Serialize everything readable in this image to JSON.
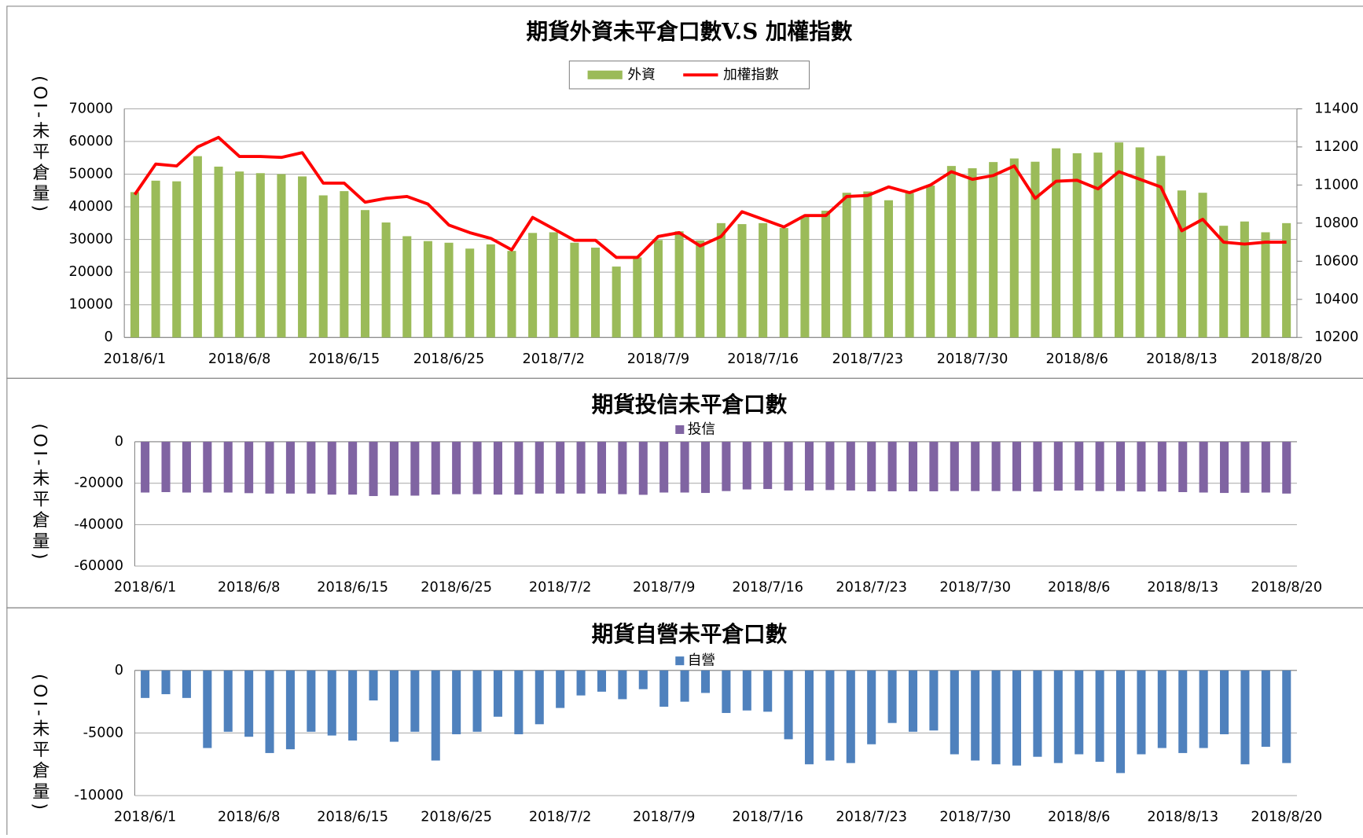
{
  "chart_data": [
    {
      "type": "bar",
      "title": "期貨外資未平倉口數V.S 加權指數",
      "y_label": "(OI-未平倉量)",
      "categories": [
        "2018/6/1",
        null,
        null,
        null,
        null,
        "2018/6/8",
        null,
        null,
        null,
        null,
        "2018/6/15",
        null,
        null,
        null,
        null,
        "2018/6/25",
        null,
        null,
        null,
        null,
        "2018/7/2",
        null,
        null,
        null,
        null,
        "2018/7/9",
        null,
        null,
        null,
        null,
        "2018/7/16",
        null,
        null,
        null,
        null,
        "2018/7/23",
        null,
        null,
        null,
        null,
        "2018/7/30",
        null,
        null,
        null,
        null,
        "2018/8/6",
        null,
        null,
        null,
        null,
        "2018/8/13",
        null,
        null,
        null,
        null,
        "2018/8/20"
      ],
      "series": [
        {
          "name": "外資",
          "color": "#9bbb59",
          "values": [
            44500,
            48000,
            47800,
            55500,
            52300,
            50800,
            50300,
            50000,
            49300,
            43500,
            44800,
            39000,
            35200,
            31000,
            29500,
            29000,
            27200,
            28500,
            26500,
            32000,
            32200,
            29000,
            27500,
            21700,
            24500,
            29800,
            32500,
            29700,
            35000,
            34700,
            35000,
            33500,
            37000,
            38800,
            44300,
            44700,
            42000,
            44200,
            46500,
            52500,
            51800,
            53700,
            54800,
            53800,
            57900,
            56400,
            56600,
            59700,
            58200,
            55600,
            45000,
            44300,
            34200,
            35500,
            32200,
            35000
          ]
        },
        {
          "name": "加權指數",
          "color": "#ff0000",
          "type": "line",
          "axis": "y2",
          "values": [
            10950,
            11110,
            11100,
            11200,
            11250,
            11150,
            11150,
            11145,
            11170,
            11010,
            11010,
            10910,
            10930,
            10940,
            10900,
            10790,
            10750,
            10720,
            10660,
            10830,
            10770,
            10710,
            10710,
            10620,
            10620,
            10730,
            10750,
            10680,
            10730,
            10860,
            10820,
            10780,
            10840,
            10840,
            10940,
            10945,
            10990,
            10960,
            11000,
            11070,
            11030,
            11050,
            11100,
            10930,
            11020,
            11025,
            10980,
            11070,
            11030,
            10990,
            10760,
            10820,
            10700,
            10690,
            10700,
            10700
          ]
        }
      ],
      "ylim": [
        0,
        70000
      ],
      "yticks": [
        0,
        10000,
        20000,
        30000,
        40000,
        50000,
        60000,
        70000
      ],
      "y2lim": [
        10200,
        11400
      ],
      "y2ticks": [
        10200,
        10400,
        10600,
        10800,
        11000,
        11200,
        11400
      ],
      "grid": true
    },
    {
      "type": "bar",
      "title": "期貨投信未平倉口數",
      "y_label": "(OI-未平倉量)",
      "categories": [
        "2018/6/1",
        null,
        null,
        null,
        null,
        "2018/6/8",
        null,
        null,
        null,
        null,
        "2018/6/15",
        null,
        null,
        null,
        null,
        "2018/6/25",
        null,
        null,
        null,
        null,
        "2018/7/2",
        null,
        null,
        null,
        null,
        "2018/7/9",
        null,
        null,
        null,
        null,
        "2018/7/16",
        null,
        null,
        null,
        null,
        "2018/7/23",
        null,
        null,
        null,
        null,
        "2018/7/30",
        null,
        null,
        null,
        null,
        "2018/8/6",
        null,
        null,
        null,
        null,
        "2018/8/13",
        null,
        null,
        null,
        null,
        "2018/8/20"
      ],
      "series": [
        {
          "name": "投信",
          "color": "#8064a2",
          "values": [
            -24500,
            -24300,
            -24500,
            -24500,
            -24500,
            -24800,
            -25000,
            -25000,
            -25000,
            -25500,
            -25500,
            -26200,
            -26000,
            -26000,
            -25500,
            -25300,
            -25300,
            -25500,
            -25500,
            -25000,
            -25000,
            -25000,
            -25000,
            -25300,
            -25600,
            -24500,
            -24500,
            -24700,
            -23800,
            -23000,
            -22800,
            -23500,
            -23500,
            -23300,
            -23500,
            -23900,
            -23900,
            -23900,
            -23900,
            -23800,
            -23800,
            -23800,
            -23800,
            -24000,
            -23600,
            -23500,
            -23800,
            -23800,
            -24000,
            -24000,
            -24300,
            -24500,
            -24700,
            -24600,
            -24500,
            -25000
          ]
        }
      ],
      "ylim": [
        -60000,
        0
      ],
      "yticks": [
        -60000,
        -40000,
        -20000,
        0
      ],
      "grid": true
    },
    {
      "type": "bar",
      "title": "期貨自營未平倉口數",
      "y_label": "(OI-未平倉量)",
      "categories": [
        "2018/6/1",
        null,
        null,
        null,
        null,
        "2018/6/8",
        null,
        null,
        null,
        null,
        "2018/6/15",
        null,
        null,
        null,
        null,
        "2018/6/25",
        null,
        null,
        null,
        null,
        "2018/7/2",
        null,
        null,
        null,
        null,
        "2018/7/9",
        null,
        null,
        null,
        null,
        "2018/7/16",
        null,
        null,
        null,
        null,
        "2018/7/23",
        null,
        null,
        null,
        null,
        "2018/7/30",
        null,
        null,
        null,
        null,
        "2018/8/6",
        null,
        null,
        null,
        null,
        "2018/8/13",
        null,
        null,
        null,
        null,
        "2018/8/20"
      ],
      "series": [
        {
          "name": "自營",
          "color": "#4f81bd",
          "values": [
            -2200,
            -1900,
            -2200,
            -6200,
            -4900,
            -5300,
            -6600,
            -6300,
            -4900,
            -5200,
            -5600,
            -2400,
            -5700,
            -4900,
            -7200,
            -5100,
            -4900,
            -3700,
            -5100,
            -4300,
            -3000,
            -2000,
            -1700,
            -2300,
            -1500,
            -2900,
            -2500,
            -1800,
            -3400,
            -3200,
            -3300,
            -5500,
            -7500,
            -7200,
            -7400,
            -5900,
            -4200,
            -4900,
            -4800,
            -6700,
            -7200,
            -7500,
            -7600,
            -6900,
            -7400,
            -6700,
            -7300,
            -8200,
            -6700,
            -6200,
            -6600,
            -6200,
            -5100,
            -7500,
            -6100,
            -7400
          ]
        }
      ],
      "ylim": [
        -10000,
        0
      ],
      "yticks": [
        -10000,
        -5000,
        0
      ],
      "grid": true
    }
  ]
}
